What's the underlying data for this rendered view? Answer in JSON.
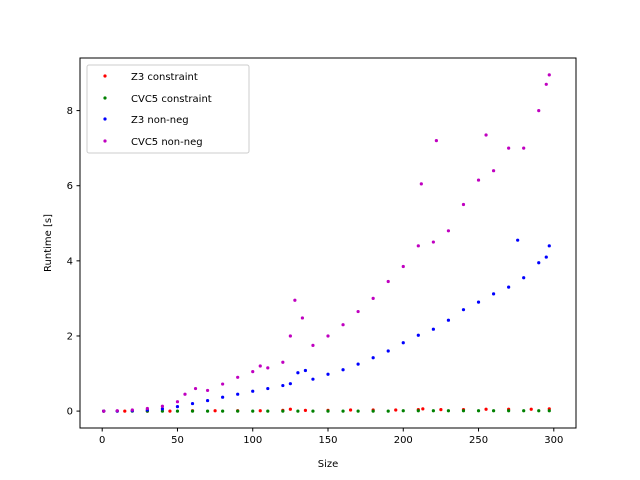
{
  "chart_data": {
    "type": "scatter",
    "title": "",
    "xlabel": "Size",
    "ylabel": "Runtime [s]",
    "xlim": [
      -14.75,
      314.75
    ],
    "ylim": [
      -0.45,
      9.4
    ],
    "xticks": [
      0,
      50,
      100,
      150,
      200,
      250,
      300
    ],
    "yticks": [
      0,
      2,
      4,
      6,
      8
    ],
    "grid": false,
    "legend_position": "top-left",
    "series": [
      {
        "name": "Z3 constraint",
        "color": "#ff0000",
        "x": [
          1,
          15,
          30,
          45,
          60,
          75,
          90,
          105,
          120,
          125,
          135,
          150,
          165,
          180,
          195,
          210,
          213,
          225,
          240,
          255,
          270,
          285,
          297
        ],
        "y": [
          0.0,
          0.0,
          0.0,
          0.0,
          0.01,
          0.01,
          0.01,
          0.01,
          0.02,
          0.05,
          0.02,
          0.02,
          0.03,
          0.03,
          0.03,
          0.04,
          0.06,
          0.04,
          0.04,
          0.05,
          0.05,
          0.05,
          0.06
        ]
      },
      {
        "name": "CVC5 constraint",
        "color": "#008000",
        "x": [
          1,
          10,
          20,
          30,
          40,
          50,
          60,
          70,
          80,
          90,
          100,
          110,
          120,
          130,
          140,
          150,
          160,
          170,
          180,
          190,
          200,
          210,
          220,
          230,
          240,
          250,
          260,
          270,
          280,
          290,
          297
        ],
        "y": [
          0.0,
          0.0,
          0.0,
          0.0,
          0.0,
          0.0,
          0.0,
          0.0,
          0.0,
          0.0,
          0.0,
          0.0,
          0.0,
          0.0,
          0.0,
          0.0,
          0.0,
          0.0,
          0.0,
          0.0,
          0.01,
          0.01,
          0.01,
          0.01,
          0.01,
          0.01,
          0.01,
          0.01,
          0.01,
          0.01,
          0.01
        ]
      },
      {
        "name": "Z3 non-neg",
        "color": "#0000ff",
        "x": [
          1,
          10,
          20,
          30,
          40,
          50,
          60,
          70,
          80,
          90,
          100,
          110,
          120,
          125,
          130,
          135,
          140,
          150,
          160,
          170,
          180,
          190,
          200,
          210,
          220,
          230,
          240,
          250,
          260,
          270,
          276,
          280,
          290,
          295,
          297
        ],
        "y": [
          0.0,
          0.0,
          0.01,
          0.03,
          0.06,
          0.12,
          0.2,
          0.28,
          0.37,
          0.45,
          0.53,
          0.6,
          0.68,
          0.73,
          1.02,
          1.08,
          0.85,
          0.98,
          1.1,
          1.25,
          1.42,
          1.6,
          1.82,
          2.02,
          2.18,
          2.42,
          2.7,
          2.9,
          3.12,
          3.3,
          4.55,
          3.55,
          3.95,
          4.1,
          4.4
        ]
      },
      {
        "name": "CVC5 non-neg",
        "color": "#c000c0",
        "x": [
          1,
          10,
          20,
          30,
          40,
          50,
          55,
          62,
          70,
          80,
          90,
          100,
          105,
          110,
          120,
          125,
          128,
          133,
          140,
          150,
          160,
          170,
          180,
          190,
          200,
          210,
          212,
          220,
          222,
          230,
          240,
          250,
          255,
          260,
          270,
          280,
          290,
          295,
          297
        ],
        "y": [
          0.0,
          0.01,
          0.03,
          0.07,
          0.13,
          0.25,
          0.45,
          0.6,
          0.55,
          0.72,
          0.9,
          1.05,
          1.2,
          1.15,
          1.3,
          2.0,
          2.95,
          2.48,
          1.75,
          2.0,
          2.3,
          2.65,
          3.0,
          3.45,
          3.85,
          4.4,
          6.05,
          4.5,
          7.2,
          4.8,
          5.5,
          6.15,
          7.35,
          6.4,
          7.0,
          7.0,
          8.0,
          8.7,
          8.95
        ]
      }
    ]
  }
}
